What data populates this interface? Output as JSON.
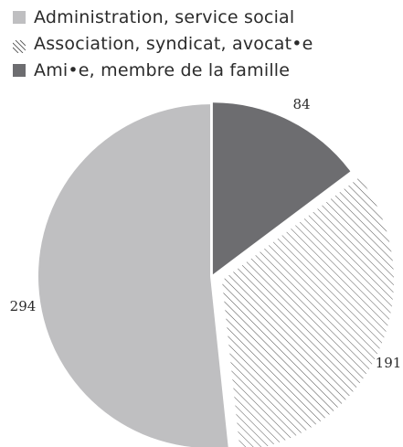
{
  "chart_data": {
    "type": "pie",
    "series": [
      {
        "name": "Administration, service social",
        "value": 294,
        "color": "#bfbfc1",
        "pattern": "solid"
      },
      {
        "name": "Association, syndicat, avocat•e",
        "value": 191,
        "color": "#ffffff",
        "pattern": "hatch"
      },
      {
        "name": "Ami•e, membre de la famille",
        "value": 84,
        "color": "#6d6d70",
        "pattern": "solid"
      }
    ],
    "labels": [
      "294",
      "191",
      "84"
    ],
    "legend_position": "top-left",
    "exploded": true
  }
}
